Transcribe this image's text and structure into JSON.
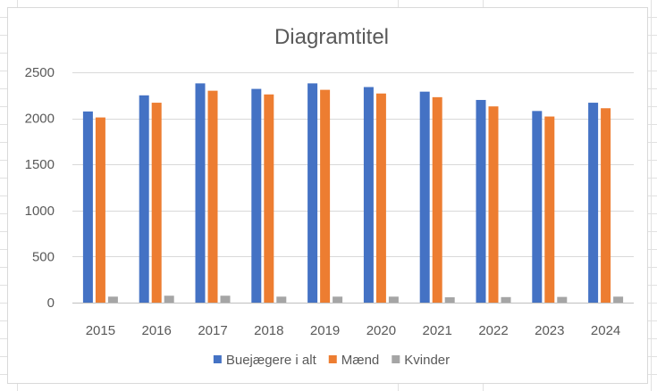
{
  "chart_data": {
    "type": "bar",
    "title": "Diagramtitel",
    "xlabel": "",
    "ylabel": "",
    "categories": [
      "2015",
      "2016",
      "2017",
      "2018",
      "2019",
      "2020",
      "2021",
      "2022",
      "2023",
      "2024"
    ],
    "series": [
      {
        "name": "Buejægere i alt",
        "color": "#4472c4",
        "values": [
          2075,
          2250,
          2380,
          2320,
          2380,
          2340,
          2290,
          2200,
          2080,
          2170
        ]
      },
      {
        "name": "Mænd",
        "color": "#ed7d31",
        "values": [
          2010,
          2170,
          2300,
          2260,
          2310,
          2270,
          2230,
          2130,
          2020,
          2110
        ]
      },
      {
        "name": "Kvinder",
        "color": "#a5a5a5",
        "values": [
          65,
          75,
          75,
          65,
          65,
          65,
          58,
          60,
          62,
          65
        ]
      }
    ],
    "ylim": [
      0,
      2500
    ],
    "yticks": [
      "0",
      "500",
      "1000",
      "1500",
      "2000",
      "2500"
    ],
    "grid": true,
    "legend_position": "bottom"
  }
}
